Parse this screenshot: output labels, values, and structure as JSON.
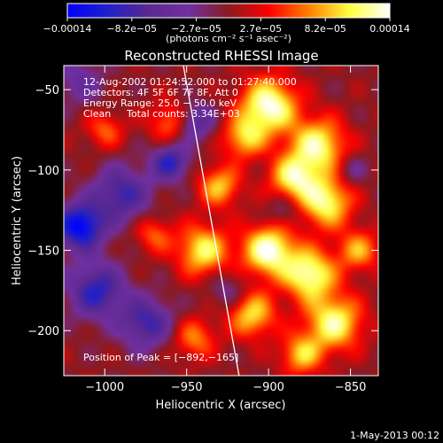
{
  "chart_data": {
    "type": "heatmap",
    "title": "Reconstructed RHESSI Image",
    "xlabel": "Heliocentric X (arcsec)",
    "ylabel": "Heliocentric Y (arcsec)",
    "xlim": [
      -1025,
      -833
    ],
    "ylim": [
      -228,
      -35
    ],
    "x_ticks": [
      -1000,
      -950,
      -900,
      -850
    ],
    "y_ticks": [
      -200,
      -150,
      -100,
      -50
    ],
    "x_tick_labels": [
      "−1000",
      "−950",
      "−900",
      "−850"
    ],
    "y_tick_labels": [
      "−200",
      "−150",
      "−100",
      "−50"
    ],
    "colorbar": {
      "range": [
        -0.00014,
        0.00014
      ],
      "tick_labels": [
        "−0.00014",
        "−8.2e−05",
        "−2.7e−05",
        "2.7e−05",
        "8.2e−05",
        "0.00014"
      ],
      "unit_text": "(photons cm⁻² s⁻¹ asec⁻²)",
      "colors": [
        "#0000ff",
        "#2020c8",
        "#5a2890",
        "#7030a0",
        "#8a1a20",
        "#ff0000",
        "#ff8000",
        "#ffff40",
        "#ffffff"
      ]
    },
    "annotations": {
      "time_range": "12‑Aug‑2002 01:24:52.000 to 01:27:40.000",
      "detectors": "Detectors: 4F 5F 6F 7F 8F, Att 0",
      "energy": "Energy Range: 25.0 − 50.0 keV",
      "clean": "Clean",
      "total_counts": "Total counts: 3.34E+03",
      "peak": "Position of Peak = [−892,−165]"
    },
    "peak": [
      -892,
      -165
    ],
    "limb_line": [
      [
        -952,
        -35
      ],
      [
        -918,
        -228
      ]
    ],
    "blobs": [
      {
        "x": -900,
        "y": -60,
        "w": 0.00014,
        "s": 12
      },
      {
        "x": -870,
        "y": -85,
        "w": 0.00012,
        "s": 12
      },
      {
        "x": -865,
        "y": -120,
        "w": 0.00012,
        "s": 11
      },
      {
        "x": -885,
        "y": -105,
        "w": 0.00011,
        "s": 10
      },
      {
        "x": -900,
        "y": -150,
        "w": 0.00014,
        "s": 11
      },
      {
        "x": -875,
        "y": -165,
        "w": 0.00013,
        "s": 11
      },
      {
        "x": -860,
        "y": -195,
        "w": 0.00012,
        "s": 12
      },
      {
        "x": -910,
        "y": -190,
        "w": 0.0001,
        "s": 10
      },
      {
        "x": -940,
        "y": -150,
        "w": 0.00011,
        "s": 11
      },
      {
        "x": -930,
        "y": -110,
        "w": 9e-05,
        "s": 9
      },
      {
        "x": -915,
        "y": -80,
        "w": 9e-05,
        "s": 9
      },
      {
        "x": -960,
        "y": -70,
        "w": 7e-05,
        "s": 9
      },
      {
        "x": -970,
        "y": -140,
        "w": 6e-05,
        "s": 8
      },
      {
        "x": -1000,
        "y": -75,
        "w": 6e-05,
        "s": 8
      },
      {
        "x": -945,
        "y": -205,
        "w": 7e-05,
        "s": 9
      },
      {
        "x": -880,
        "y": -215,
        "w": 9e-05,
        "s": 9
      },
      {
        "x": -845,
        "y": -150,
        "w": 8e-05,
        "s": 9
      },
      {
        "x": -990,
        "y": -115,
        "w": -9e-05,
        "s": 12
      },
      {
        "x": -1015,
        "y": -135,
        "w": -0.00014,
        "s": 10
      },
      {
        "x": -1005,
        "y": -175,
        "w": -0.0001,
        "s": 12
      },
      {
        "x": -975,
        "y": -195,
        "w": -9e-05,
        "s": 11
      },
      {
        "x": -960,
        "y": -95,
        "w": -0.0001,
        "s": 8
      },
      {
        "x": -945,
        "y": -70,
        "w": -8e-05,
        "s": 8
      },
      {
        "x": -1015,
        "y": -45,
        "w": -5e-05,
        "s": 10
      },
      {
        "x": -925,
        "y": -175,
        "w": -4e-05,
        "s": 8
      },
      {
        "x": -890,
        "y": -125,
        "w": -4e-05,
        "s": 7
      },
      {
        "x": -850,
        "y": -100,
        "w": -4e-05,
        "s": 7
      }
    ]
  },
  "footer": {
    "timestamp": "1‑May‑2013 00:12"
  }
}
